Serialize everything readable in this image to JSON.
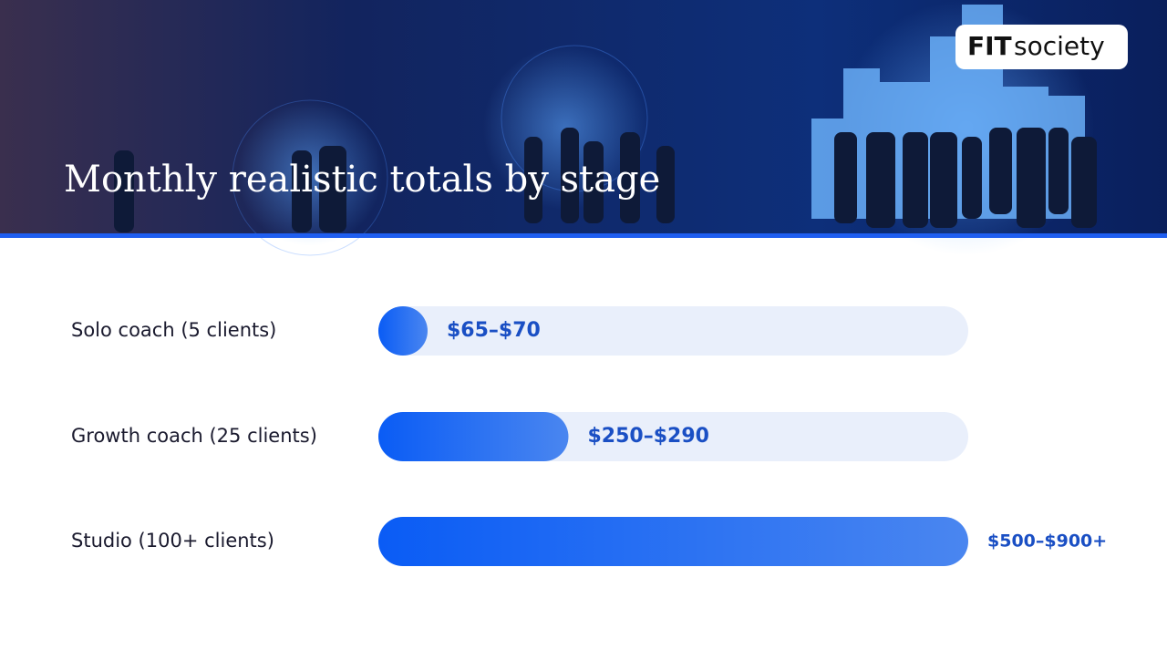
{
  "header": {
    "title": "Monthly realistic totals by stage",
    "logo_bold": "FIT",
    "logo_light": "society"
  },
  "chart_data": {
    "type": "bar",
    "orientation": "horizontal",
    "categories": [
      "Solo coach (5 clients)",
      "Growth coach (25 clients)",
      "Studio (100+ clients)"
    ],
    "values": [
      70,
      290,
      900
    ],
    "value_labels": [
      "$65–$70",
      "$250–$290",
      "$500–$900+"
    ],
    "color": "#0a5cf5",
    "track_color": "#e9effb",
    "label_color": "#1a4fc4"
  }
}
